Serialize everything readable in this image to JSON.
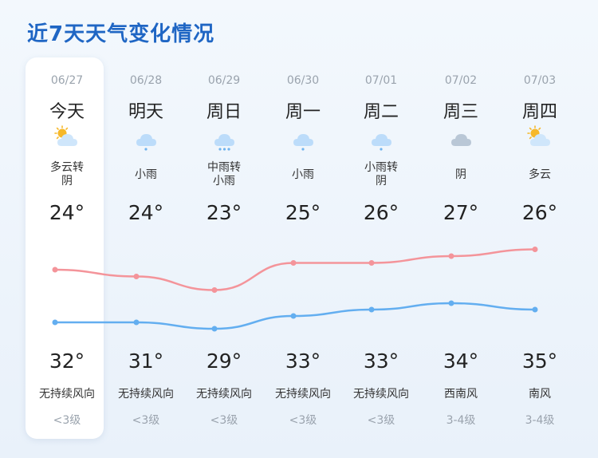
{
  "title": "近7天天气变化情况",
  "colors": {
    "high_line": "#f4949a",
    "low_line": "#63aef0",
    "title": "#1f66c4"
  },
  "days": [
    {
      "date": "06/27",
      "day": "今天",
      "icon": "partly-cloudy-icon",
      "desc1": "多云转",
      "desc2": "阴",
      "temp_top": "24°",
      "temp_bot": "32°",
      "wind": "无持续风向",
      "level": "<3级"
    },
    {
      "date": "06/28",
      "day": "明天",
      "icon": "light-rain-icon",
      "desc1": "小雨",
      "desc2": "",
      "temp_top": "24°",
      "temp_bot": "31°",
      "wind": "无持续风向",
      "level": "<3级"
    },
    {
      "date": "06/29",
      "day": "周日",
      "icon": "moderate-rain-icon",
      "desc1": "中雨转",
      "desc2": "小雨",
      "temp_top": "23°",
      "temp_bot": "29°",
      "wind": "无持续风向",
      "level": "<3级"
    },
    {
      "date": "06/30",
      "day": "周一",
      "icon": "light-rain-icon",
      "desc1": "小雨",
      "desc2": "",
      "temp_top": "25°",
      "temp_bot": "33°",
      "wind": "无持续风向",
      "level": "<3级"
    },
    {
      "date": "07/01",
      "day": "周二",
      "icon": "light-rain-icon",
      "desc1": "小雨转",
      "desc2": "阴",
      "temp_top": "26°",
      "temp_bot": "33°",
      "wind": "无持续风向",
      "level": "<3级"
    },
    {
      "date": "07/02",
      "day": "周三",
      "icon": "overcast-icon",
      "desc1": "阴",
      "desc2": "",
      "temp_top": "27°",
      "temp_bot": "34°",
      "wind": "西南风",
      "level": "3-4级"
    },
    {
      "date": "07/03",
      "day": "周四",
      "icon": "partly-cloudy-icon",
      "desc1": "多云",
      "desc2": "",
      "temp_top": "26°",
      "temp_bot": "35°",
      "wind": "南风",
      "level": "3-4级"
    }
  ],
  "high_temps": [
    32,
    31,
    29,
    33,
    33,
    34,
    35
  ],
  "low_temps": [
    24,
    24,
    23,
    25,
    26,
    27,
    26
  ]
}
